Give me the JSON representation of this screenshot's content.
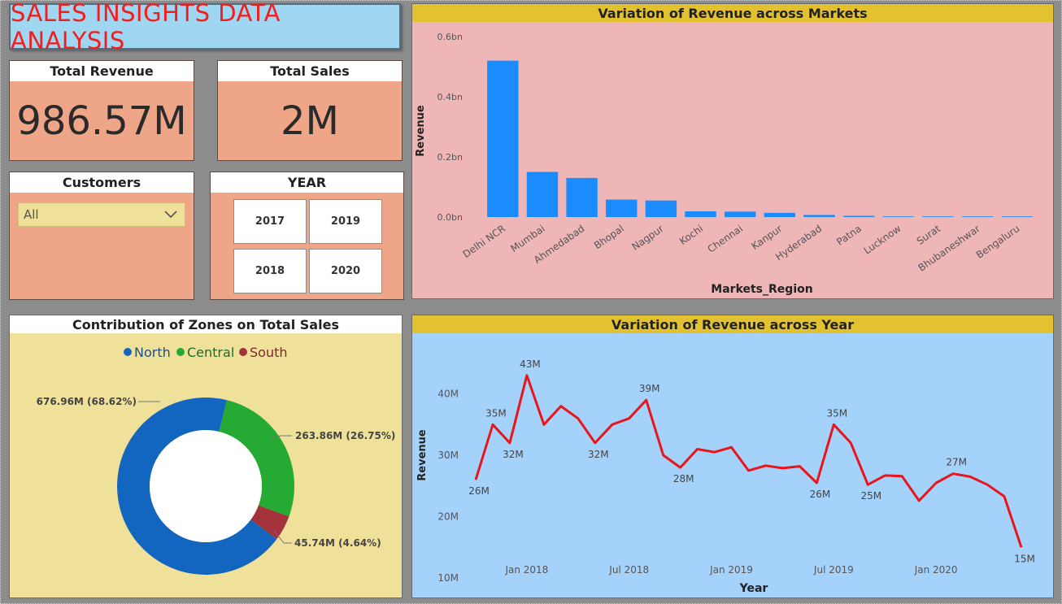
{
  "header": {
    "title": "SALES INSIGHTS DATA ANALYSIS"
  },
  "kpis": {
    "total_revenue": {
      "label": "Total Revenue",
      "value": "986.57M"
    },
    "total_sales": {
      "label": "Total Sales",
      "value": "2M"
    }
  },
  "filters": {
    "customers": {
      "label": "Customers",
      "selected": "All",
      "icon": "chevron-down-icon"
    },
    "year": {
      "label": "YEAR",
      "options": [
        "2017",
        "2019",
        "2018",
        "2020"
      ]
    }
  },
  "colors": {
    "title_text": "#f21d1d",
    "kpi_card": "#efa588",
    "bar_panel_bg": "#efb6b8",
    "bar_color": "#1a8cff",
    "line_panel_bg": "#a5d2fb",
    "line_color": "#e8151a",
    "donut_panel_bg": "#efe09a",
    "panel_header": "#e2c231",
    "north": "#1366c0",
    "central": "#25ab33",
    "south": "#a3323a"
  },
  "charts": {
    "markets": {
      "title": "Variation of Revenue across Markets",
      "xlabel": "Markets_Region",
      "ylabel": "Revenue",
      "yticks": [
        "0.0bn",
        "0.2bn",
        "0.4bn",
        "0.6bn"
      ]
    },
    "zones": {
      "title": "Contribution of Zones on Total Sales",
      "legend": [
        "North",
        "Central",
        "South"
      ],
      "labels": [
        "676.96M (68.62%)",
        "263.86M (26.75%)",
        "45.74M (4.64%)"
      ]
    },
    "yearly": {
      "title": "Variation of Revenue across Year",
      "xlabel": "Year",
      "ylabel": "Revenue",
      "yticks": [
        "10M",
        "20M",
        "30M",
        "40M"
      ],
      "xticks": [
        "Jan 2018",
        "Jul 2018",
        "Jan 2019",
        "Jul 2019",
        "Jan 2020"
      ]
    }
  },
  "chart_data": [
    {
      "type": "bar",
      "title": "Variation of Revenue across Markets",
      "xlabel": "Markets_Region",
      "ylabel": "Revenue",
      "ylim": [
        0,
        0.6
      ],
      "unit": "bn",
      "categories": [
        "Delhi NCR",
        "Mumbai",
        "Ahmedabad",
        "Bhopal",
        "Nagpur",
        "Kochi",
        "Chennai",
        "Kanpur",
        "Hyderabad",
        "Patna",
        "Lucknow",
        "Surat",
        "Bhubaneshwar",
        "Bengaluru"
      ],
      "values": [
        0.52,
        0.15,
        0.13,
        0.058,
        0.055,
        0.019,
        0.018,
        0.014,
        0.007,
        0.004,
        0.002,
        0.002,
        0.001,
        0.0004
      ]
    },
    {
      "type": "pie",
      "title": "Contribution of Zones on Total Sales",
      "categories": [
        "North",
        "Central",
        "South"
      ],
      "values": [
        676.96,
        263.86,
        45.74
      ],
      "percentages": [
        68.62,
        26.75,
        4.64
      ],
      "unit": "M"
    },
    {
      "type": "line",
      "title": "Variation of Revenue across Year",
      "xlabel": "Year",
      "ylabel": "Revenue",
      "ylim": [
        10,
        45
      ],
      "unit": "M",
      "x": [
        "2017-10",
        "2017-11",
        "2017-12",
        "2018-01",
        "2018-02",
        "2018-03",
        "2018-04",
        "2018-05",
        "2018-06",
        "2018-07",
        "2018-08",
        "2018-09",
        "2018-10",
        "2018-11",
        "2018-12",
        "2019-01",
        "2019-02",
        "2019-03",
        "2019-04",
        "2019-05",
        "2019-06",
        "2019-07",
        "2019-08",
        "2019-09",
        "2019-10",
        "2019-11",
        "2019-12",
        "2020-01",
        "2020-02",
        "2020-03",
        "2020-04",
        "2020-05",
        "2020-06"
      ],
      "values": [
        26,
        35,
        32,
        43,
        35,
        38,
        36,
        32,
        35,
        36,
        39,
        30,
        28,
        31,
        30.5,
        31.3,
        27.5,
        28.3,
        27.9,
        28.2,
        25.5,
        35,
        32,
        25.2,
        26.7,
        26.6,
        22.6,
        25.5,
        27,
        26.5,
        25.2,
        23.3,
        15
      ]
    }
  ]
}
